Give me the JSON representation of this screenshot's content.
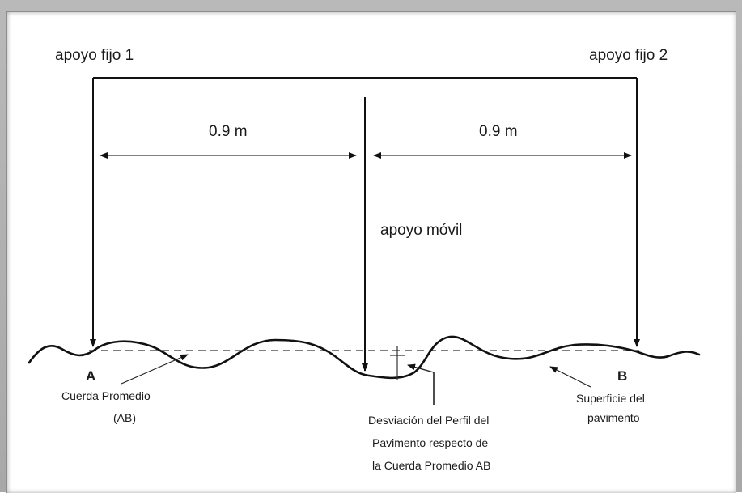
{
  "labels": {
    "support_fixed_1": "apoyo fijo 1",
    "support_fixed_2": "apoyo fijo 2",
    "span_left": "0.9 m",
    "span_right": "0.9 m",
    "support_mobile": "apoyo móvil",
    "point_a": "A",
    "point_b": "B",
    "chord_line1": "Cuerda Promedio",
    "chord_line2": "(AB)",
    "surface_line1": "Superficie del",
    "surface_line2": "pavimento",
    "deviation_line1": "Desviación del Perfil del",
    "deviation_line2": "Pavimento respecto de",
    "deviation_line3": "la Cuerda Promedio AB"
  }
}
